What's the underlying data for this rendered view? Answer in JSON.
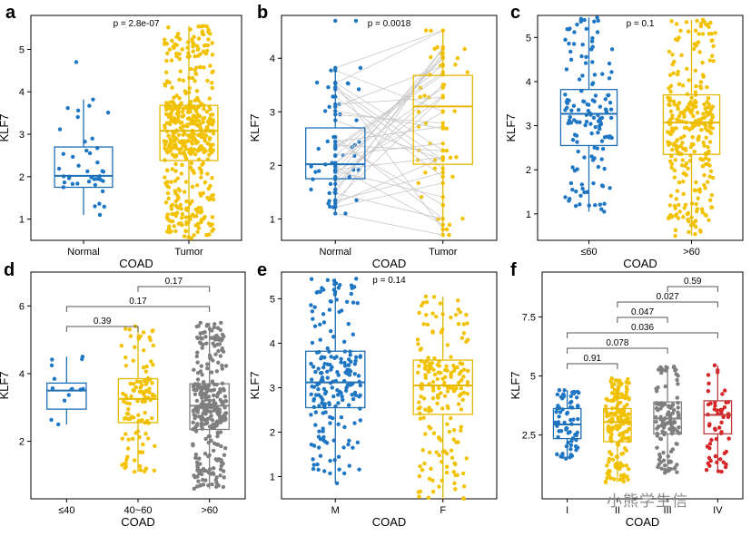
{
  "watermark": "小熊学生信",
  "colors": {
    "blue": "#1f6fb5",
    "yellow": "#e6b800",
    "gray": "#808080",
    "red": "#c0393b",
    "jitter": {
      "blue": "#1f77c4",
      "yellow": "#f2c200",
      "gray": "#7f7f7f",
      "red": "#d62728"
    }
  },
  "chart_data": [
    {
      "panel": "a",
      "type": "box",
      "ylabel": "KLF7",
      "xlabel": "COAD",
      "ylim": [
        0.5,
        5.8
      ],
      "yticks": [
        1,
        2,
        3,
        4,
        5
      ],
      "pvalue": "p = 2.8e-07",
      "paired": false,
      "brackets": [],
      "groups": [
        {
          "label": "Normal",
          "color": "blue",
          "n": 40,
          "min": 1.1,
          "q1": 1.75,
          "median": 2.02,
          "q3": 2.7,
          "max": 3.82,
          "outliers": [
            4.7
          ]
        },
        {
          "label": "Tumor",
          "color": "yellow",
          "n": 470,
          "min": 0.55,
          "q1": 2.38,
          "median": 3.08,
          "q3": 3.68,
          "max": 5.55,
          "outliers": []
        }
      ]
    },
    {
      "panel": "b",
      "type": "box",
      "ylabel": "KLF7",
      "xlabel": "COAD",
      "ylim": [
        0.6,
        4.8
      ],
      "yticks": [
        1,
        2,
        3,
        4
      ],
      "pvalue": "p = 0.0018",
      "paired": true,
      "brackets": [],
      "groups": [
        {
          "label": "Normal",
          "color": "blue",
          "n": 40,
          "min": 1.1,
          "q1": 1.75,
          "median": 2.02,
          "q3": 2.7,
          "max": 3.82,
          "outliers": [
            4.7
          ]
        },
        {
          "label": "Tumor",
          "color": "yellow",
          "n": 40,
          "min": 0.7,
          "q1": 2.02,
          "median": 3.1,
          "q3": 3.68,
          "max": 4.52,
          "outliers": []
        }
      ]
    },
    {
      "panel": "c",
      "type": "box",
      "ylabel": "KLF7",
      "xlabel": "COAD",
      "ylim": [
        0.4,
        5.5
      ],
      "yticks": [
        1,
        2,
        3,
        4,
        5
      ],
      "pvalue": "p = 0.1",
      "paired": false,
      "brackets": [],
      "groups": [
        {
          "label": "≤60",
          "color": "blue",
          "n": 140,
          "min": 1.05,
          "q1": 2.55,
          "median": 3.27,
          "q3": 3.82,
          "max": 5.45,
          "outliers": []
        },
        {
          "label": ">60",
          "color": "yellow",
          "n": 300,
          "min": 0.5,
          "q1": 2.35,
          "median": 3.07,
          "q3": 3.7,
          "max": 5.4,
          "outliers": []
        }
      ]
    },
    {
      "panel": "d",
      "type": "box",
      "ylabel": "KLF7",
      "xlabel": "COAD",
      "ylim": [
        0.3,
        7.0
      ],
      "yticks": [
        2,
        4,
        6
      ],
      "pvalue": "",
      "paired": false,
      "brackets": [
        {
          "from": 1,
          "to": 2,
          "label": "0.17",
          "level": 0
        },
        {
          "from": 0,
          "to": 2,
          "label": "0.17",
          "level": 1
        },
        {
          "from": 0,
          "to": 1,
          "label": "0.39",
          "level": 2
        }
      ],
      "groups": [
        {
          "label": "≤40",
          "color": "blue",
          "n": 14,
          "min": 2.5,
          "q1": 2.95,
          "median": 3.5,
          "q3": 3.72,
          "max": 4.5,
          "outliers": []
        },
        {
          "label": "40~60",
          "color": "yellow",
          "n": 110,
          "min": 1.1,
          "q1": 2.55,
          "median": 3.25,
          "q3": 3.85,
          "max": 5.4,
          "outliers": []
        },
        {
          "label": ">60",
          "color": "gray",
          "n": 300,
          "min": 0.6,
          "q1": 2.35,
          "median": 3.05,
          "q3": 3.7,
          "max": 5.5,
          "outliers": []
        }
      ]
    },
    {
      "panel": "e",
      "type": "box",
      "ylabel": "KLF7",
      "xlabel": "COAD",
      "ylim": [
        0.5,
        5.6
      ],
      "yticks": [
        1,
        2,
        3,
        4,
        5
      ],
      "pvalue": "p = 0.14",
      "paired": false,
      "brackets": [],
      "groups": [
        {
          "label": "M",
          "color": "blue",
          "n": 200,
          "min": 0.85,
          "q1": 2.55,
          "median": 3.12,
          "q3": 3.82,
          "max": 5.45,
          "outliers": []
        },
        {
          "label": "F",
          "color": "yellow",
          "n": 190,
          "min": 0.5,
          "q1": 2.4,
          "median": 3.05,
          "q3": 3.62,
          "max": 5.05,
          "outliers": []
        }
      ]
    },
    {
      "panel": "f",
      "type": "box",
      "ylabel": "KLF7",
      "xlabel": "COAD",
      "ylim": [
        -0.2,
        9.4
      ],
      "yticks": [
        2.5,
        5.0,
        7.5
      ],
      "pvalue": "",
      "paired": false,
      "brackets": [
        {
          "from": 2,
          "to": 3,
          "label": "0.59",
          "level": 0
        },
        {
          "from": 1,
          "to": 3,
          "label": "0.027",
          "level": 1
        },
        {
          "from": 1,
          "to": 2,
          "label": "0.047",
          "level": 2
        },
        {
          "from": 0,
          "to": 3,
          "label": "0.036",
          "level": 3
        },
        {
          "from": 0,
          "to": 2,
          "label": "0.078",
          "level": 4
        },
        {
          "from": 0,
          "to": 1,
          "label": "0.91",
          "level": 5
        }
      ],
      "groups": [
        {
          "label": "I",
          "color": "blue",
          "n": 70,
          "min": 1.5,
          "q1": 2.35,
          "median": 2.95,
          "q3": 3.62,
          "max": 4.4,
          "outliers": []
        },
        {
          "label": "II",
          "color": "yellow",
          "n": 170,
          "min": 0.5,
          "q1": 2.22,
          "median": 3.05,
          "q3": 3.62,
          "max": 4.9,
          "outliers": []
        },
        {
          "label": "III",
          "color": "gray",
          "n": 120,
          "min": 0.9,
          "q1": 2.55,
          "median": 3.2,
          "q3": 3.9,
          "max": 5.4,
          "outliers": []
        },
        {
          "label": "IV",
          "color": "red",
          "n": 55,
          "min": 0.95,
          "q1": 2.55,
          "median": 3.35,
          "q3": 3.95,
          "max": 5.45,
          "outliers": []
        }
      ]
    }
  ]
}
